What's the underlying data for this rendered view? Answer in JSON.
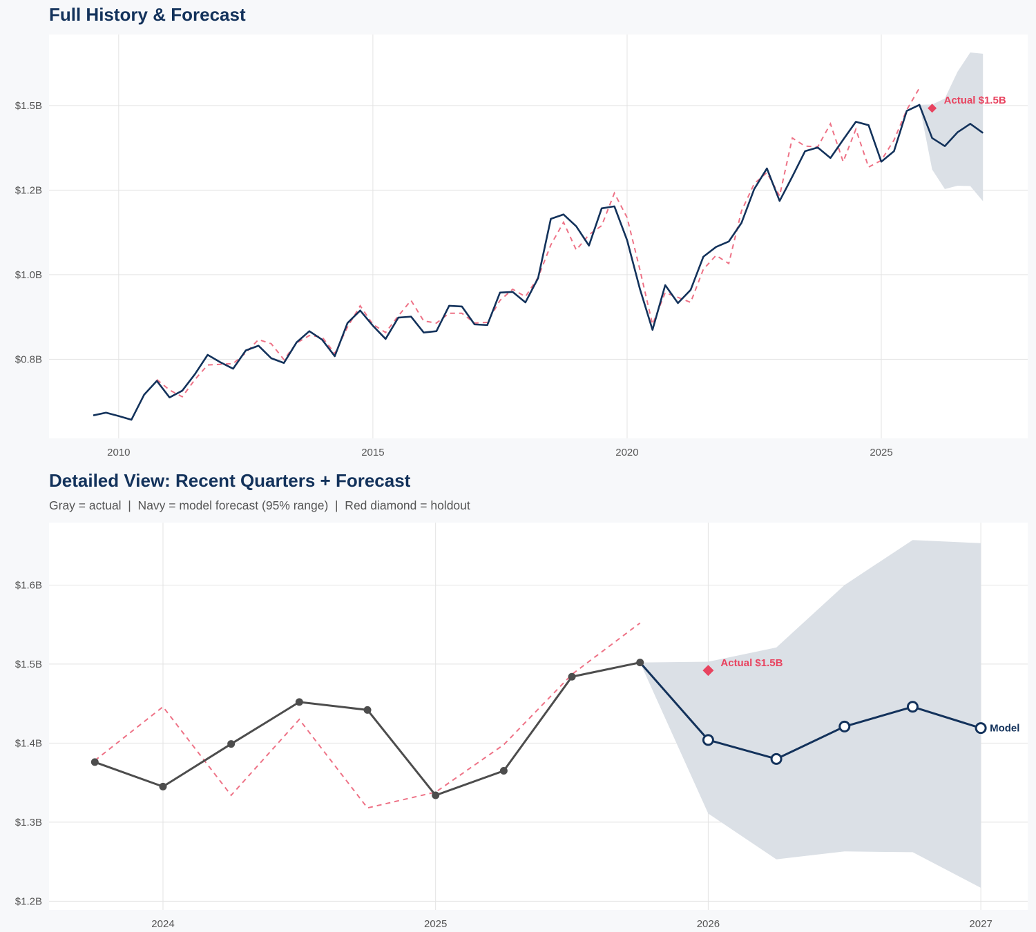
{
  "colors": {
    "navy": "#13325b",
    "red": "#e8435f",
    "fitted": "#ee7286",
    "actual_gray": "#4d4d4d",
    "band": "#dbe0e6",
    "grid": "#e3e3e3"
  },
  "chart_data": [
    {
      "type": "line",
      "title": "Full History & Forecast",
      "xlim": [
        2008.63,
        2027.88
      ],
      "ylim": [
        0.516,
        1.71
      ],
      "grid": true,
      "x_ticks": [
        2010,
        2015,
        2020,
        2025
      ],
      "x_tick_labels": [
        "2010",
        "2015",
        "2020",
        "2025"
      ],
      "y_ticks": [
        0.75,
        1.0,
        1.25,
        1.5
      ],
      "y_tick_labels": [
        "$0.8B",
        "$1.0B",
        "$1.2B",
        "$1.5B"
      ],
      "actual": {
        "x_start": 2009.5,
        "step": 0.25,
        "values": [
          0.584,
          0.592,
          0.582,
          0.571,
          0.645,
          0.686,
          0.637,
          0.657,
          0.706,
          0.763,
          0.741,
          0.722,
          0.776,
          0.79,
          0.753,
          0.739,
          0.8,
          0.833,
          0.808,
          0.759,
          0.857,
          0.894,
          0.849,
          0.81,
          0.873,
          0.876,
          0.829,
          0.833,
          0.908,
          0.906,
          0.853,
          0.851,
          0.947,
          0.949,
          0.918,
          0.99,
          1.165,
          1.178,
          1.143,
          1.086,
          1.196,
          1.202,
          1.102,
          0.959,
          0.837,
          0.969,
          0.916,
          0.955,
          1.053,
          1.082,
          1.098,
          1.153,
          1.253,
          1.314,
          1.218,
          1.29,
          1.365,
          1.376,
          1.345,
          1.399,
          1.452,
          1.442,
          1.334,
          1.365,
          1.484,
          1.502
        ]
      },
      "fitted": {
        "x_start": 2010.75,
        "step": 0.25,
        "values": [
          0.69,
          0.659,
          0.639,
          0.69,
          0.733,
          0.735,
          0.737,
          0.769,
          0.808,
          0.796,
          0.749,
          0.798,
          0.82,
          0.816,
          0.767,
          0.845,
          0.908,
          0.853,
          0.829,
          0.878,
          0.924,
          0.863,
          0.857,
          0.886,
          0.886,
          0.857,
          0.859,
          0.924,
          0.957,
          0.935,
          0.992,
          1.088,
          1.155,
          1.073,
          1.118,
          1.145,
          1.241,
          1.169,
          1.016,
          0.853,
          0.947,
          0.933,
          0.918,
          1.016,
          1.057,
          1.033,
          1.188,
          1.269,
          1.302,
          1.233,
          1.404,
          1.38,
          1.378,
          1.446,
          1.334,
          1.43,
          1.318,
          1.338,
          1.398,
          1.487,
          1.552
        ]
      },
      "forecast": {
        "x": [
          2025.75,
          2026.0,
          2026.25,
          2026.5,
          2026.75,
          2027.0
        ],
        "values": [
          1.502,
          1.404,
          1.38,
          1.421,
          1.446,
          1.419
        ]
      },
      "band": {
        "x": [
          2025.75,
          2026.0,
          2026.25,
          2026.5,
          2026.75,
          2027.0
        ],
        "lower": [
          1.502,
          1.311,
          1.253,
          1.263,
          1.262,
          1.217
        ],
        "upper": [
          1.502,
          1.503,
          1.521,
          1.6,
          1.657,
          1.653
        ]
      },
      "holdout": {
        "x": 2026.0,
        "value": 1.492,
        "label": "Actual $1.5B"
      }
    },
    {
      "type": "line",
      "title": "Detailed View: Recent Quarters + Forecast",
      "subtitle": "Gray = actual  |  Navy = model forecast (95% range)  |  Red diamond = holdout",
      "xlim": [
        2023.582,
        2027.172
      ],
      "ylim": [
        1.189,
        1.679
      ],
      "grid": true,
      "x_ticks": [
        2024,
        2025,
        2026,
        2027
      ],
      "x_tick_labels": [
        "2024",
        "2025",
        "2026",
        "2027"
      ],
      "y_ticks": [
        1.2,
        1.3,
        1.4,
        1.5,
        1.6
      ],
      "y_tick_labels": [
        "$1.2B",
        "$1.3B",
        "$1.4B",
        "$1.5B",
        "$1.6B"
      ],
      "actual": {
        "x": [
          2023.75,
          2024.0,
          2024.25,
          2024.5,
          2024.75,
          2025.0,
          2025.25,
          2025.5,
          2025.75
        ],
        "values": [
          1.376,
          1.345,
          1.399,
          1.452,
          1.442,
          1.334,
          1.365,
          1.484,
          1.502
        ]
      },
      "fitted": {
        "x": [
          2023.75,
          2024.0,
          2024.25,
          2024.5,
          2024.75,
          2025.0,
          2025.25,
          2025.5,
          2025.75
        ],
        "values": [
          1.378,
          1.446,
          1.334,
          1.43,
          1.318,
          1.338,
          1.398,
          1.487,
          1.552
        ]
      },
      "forecast": {
        "x": [
          2025.75,
          2026.0,
          2026.25,
          2026.5,
          2026.75,
          2027.0
        ],
        "values": [
          1.502,
          1.404,
          1.38,
          1.421,
          1.446,
          1.419
        ],
        "label": "Model"
      },
      "band": {
        "x": [
          2025.75,
          2026.0,
          2026.25,
          2026.5,
          2026.75,
          2027.0
        ],
        "lower": [
          1.502,
          1.311,
          1.253,
          1.263,
          1.262,
          1.217
        ],
        "upper": [
          1.502,
          1.503,
          1.521,
          1.6,
          1.657,
          1.653
        ]
      },
      "holdout": {
        "x": 2026.0,
        "value": 1.492,
        "label": "Actual $1.5B"
      }
    }
  ]
}
